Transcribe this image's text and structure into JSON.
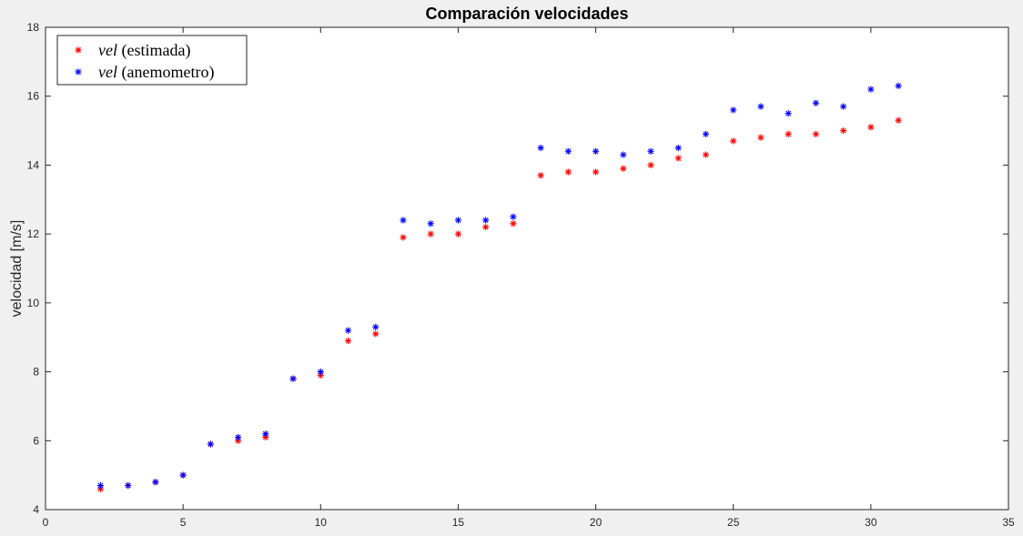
{
  "chart_data": {
    "type": "scatter",
    "title": "Comparación velocidades",
    "xlabel": "",
    "ylabel": "velocidad [m/s]",
    "xlim": [
      0,
      35
    ],
    "ylim": [
      4,
      18
    ],
    "xticks": [
      0,
      5,
      10,
      15,
      20,
      25,
      30,
      35
    ],
    "yticks": [
      4,
      6,
      8,
      10,
      12,
      14,
      16,
      18
    ],
    "grid": false,
    "legend_position": "top-left",
    "marker": "*",
    "series": [
      {
        "name": "vel (estimada)",
        "name_italic": "vel",
        "name_rest": " (estimada)",
        "color": "#ff0000",
        "x": [
          2,
          3,
          4,
          5,
          6,
          7,
          8,
          9,
          10,
          11,
          12,
          13,
          14,
          15,
          16,
          17,
          18,
          19,
          20,
          21,
          22,
          23,
          24,
          25,
          26,
          27,
          28,
          29,
          30,
          31
        ],
        "y": [
          4.6,
          4.7,
          4.8,
          5.0,
          5.9,
          6.0,
          6.1,
          7.8,
          7.9,
          8.9,
          9.1,
          11.9,
          12.0,
          12.0,
          12.2,
          12.3,
          13.7,
          13.8,
          13.8,
          13.9,
          14.0,
          14.2,
          14.3,
          14.7,
          14.8,
          14.9,
          14.9,
          15.0,
          15.1,
          15.3
        ]
      },
      {
        "name": "vel (anemometro)",
        "name_italic": "vel",
        "name_rest": " (anemometro)",
        "color": "#0000ff",
        "x": [
          2,
          3,
          4,
          5,
          6,
          7,
          8,
          9,
          10,
          11,
          12,
          13,
          14,
          15,
          16,
          17,
          18,
          19,
          20,
          21,
          22,
          23,
          24,
          25,
          26,
          27,
          28,
          29,
          30,
          31
        ],
        "y": [
          4.7,
          4.7,
          4.8,
          5.0,
          5.9,
          6.1,
          6.2,
          7.8,
          8.0,
          9.2,
          9.3,
          12.4,
          12.3,
          12.4,
          12.4,
          12.5,
          14.5,
          14.4,
          14.4,
          14.3,
          14.4,
          14.5,
          14.9,
          15.6,
          15.7,
          15.5,
          15.8,
          15.7,
          16.2,
          16.3
        ]
      }
    ]
  }
}
